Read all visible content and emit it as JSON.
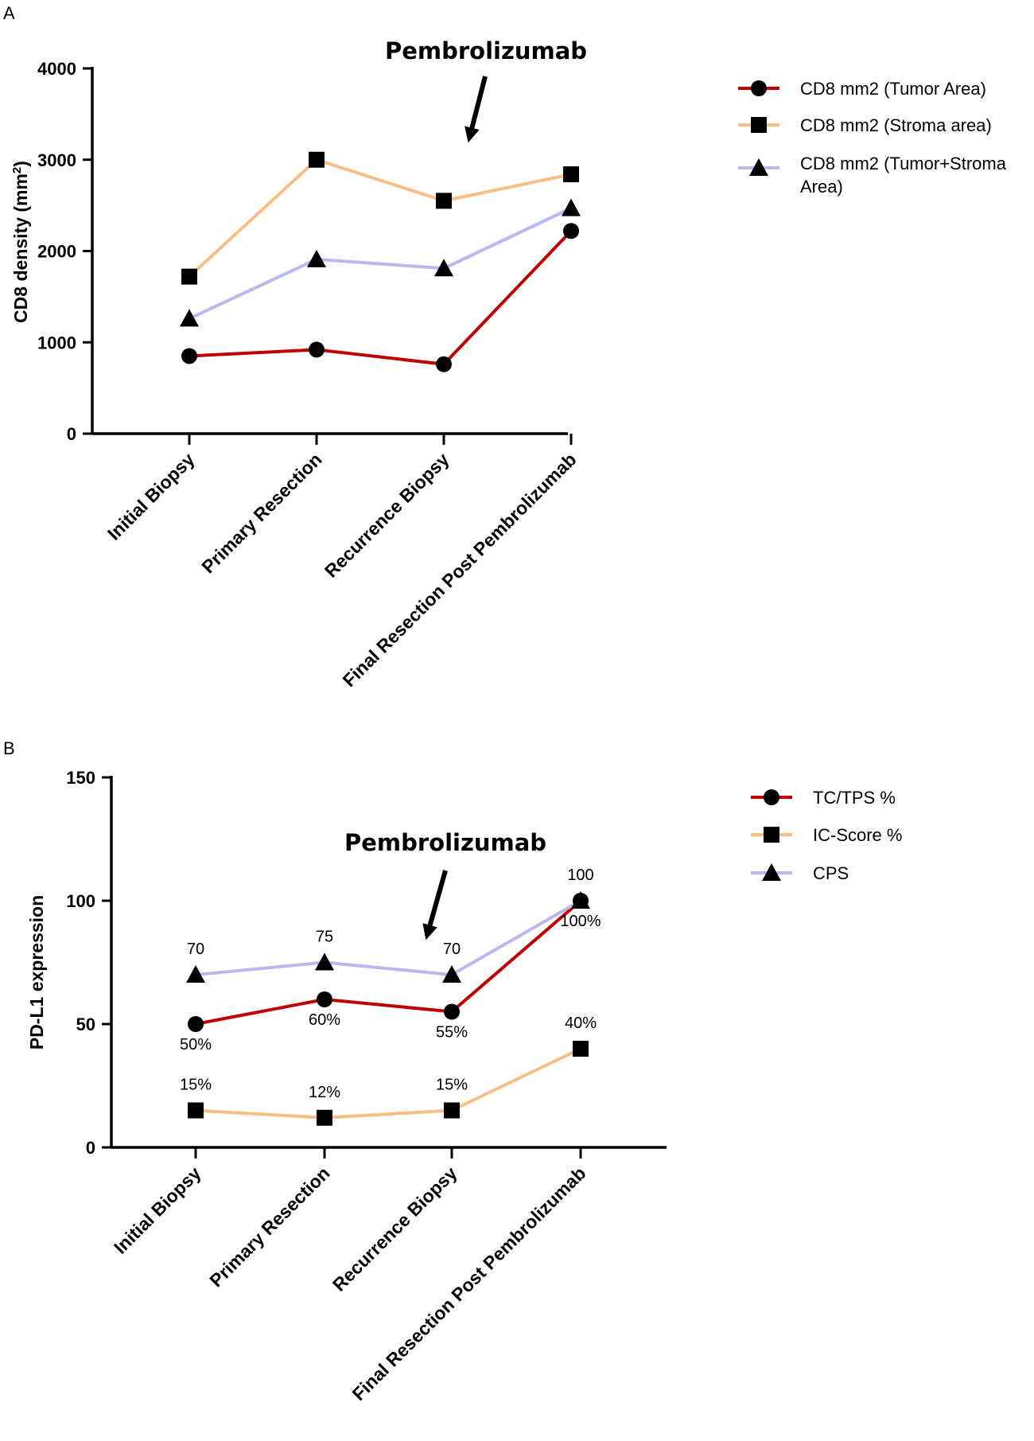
{
  "chart_data": [
    {
      "type": "line",
      "panel_label": "A",
      "title": "",
      "xlabel": "",
      "ylabel": "CD8 density (mm",
      "ylabel_superscript": "2",
      "ylabel_suffix": ")",
      "ylim": [
        0,
        4000
      ],
      "yticks": [
        "0",
        "1000",
        "2000",
        "3000",
        "4000"
      ],
      "ytick_values": [
        0,
        1000,
        2000,
        3000,
        4000
      ],
      "categories": [
        "Initial Biopsy",
        "Primary Resection",
        "Recurrence Biopsy",
        "Final Resection Post Pembrolizumab"
      ],
      "annotation": "Pembrolizumab",
      "legend_position": "top-right",
      "series": [
        {
          "name": "CD8 mm2 (Tumor Area)",
          "legend_lines": [
            "CD8 mm2 (Tumor Area)"
          ],
          "color": "#c00000",
          "marker": "circle",
          "values": [
            850,
            920,
            760,
            2220
          ]
        },
        {
          "name": "CD8 mm2 (Stroma area)",
          "legend_lines": [
            "CD8 mm2 (Stroma area)"
          ],
          "color": "#f9be86",
          "marker": "square",
          "values": [
            1720,
            3000,
            2550,
            2840
          ]
        },
        {
          "name": "CD8 mm2 (Tumor+Stroma Area)",
          "legend_lines": [
            "CD8 mm2 (Tumor+Stroma",
            "Area)"
          ],
          "color": "#b9b9f0",
          "marker": "triangle",
          "values": [
            1260,
            1910,
            1810,
            2470
          ]
        }
      ]
    },
    {
      "type": "line",
      "panel_label": "B",
      "title": "",
      "xlabel": "",
      "ylabel": "PD-L1 expression",
      "ylim": [
        0,
        150
      ],
      "yticks": [
        "0",
        "50",
        "100",
        "150"
      ],
      "ytick_values": [
        0,
        50,
        100,
        150
      ],
      "categories": [
        "Initial Biopsy",
        "Primary Resection",
        "Recurrence Biopsy",
        "Final Resection Post Pembrolizumab"
      ],
      "annotation": "Pembrolizumab",
      "legend_position": "top-right",
      "series": [
        {
          "name": "TC/TPS %",
          "legend_lines": [
            "TC/TPS %"
          ],
          "color": "#c00000",
          "marker": "circle",
          "values": [
            50,
            60,
            55,
            100
          ],
          "labels": [
            "50%",
            "60%",
            "55%",
            "100%"
          ],
          "label_side": "below"
        },
        {
          "name": "IC-Score %",
          "legend_lines": [
            "IC-Score %"
          ],
          "color": "#f9be86",
          "marker": "square",
          "values": [
            15,
            12,
            15,
            40
          ],
          "labels": [
            "15%",
            "12%",
            "15%",
            "40%"
          ],
          "label_side": "above"
        },
        {
          "name": "CPS",
          "legend_lines": [
            "CPS"
          ],
          "color": "#b9b9f0",
          "marker": "triangle",
          "values": [
            70,
            75,
            70,
            100
          ],
          "labels": [
            "70",
            "75",
            "70",
            "100"
          ],
          "label_side": "above"
        }
      ]
    }
  ]
}
